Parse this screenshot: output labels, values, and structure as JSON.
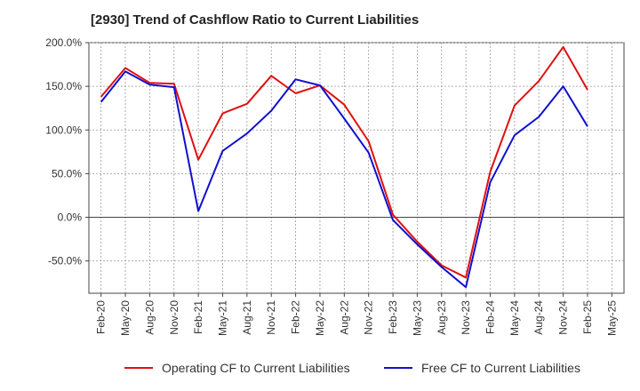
{
  "chart_data": {
    "type": "line",
    "title": "[2930]  Trend of Cashflow Ratio to Current Liabilities",
    "x_tick_labels": [
      "Feb-20",
      "May-20",
      "Aug-20",
      "Nov-20",
      "Feb-21",
      "May-21",
      "Aug-21",
      "Nov-21",
      "Feb-22",
      "May-22",
      "Aug-22",
      "Nov-22",
      "Feb-23",
      "May-23",
      "Aug-23",
      "Nov-23",
      "Feb-24",
      "May-24",
      "Aug-24",
      "Nov-24",
      "Feb-25",
      "May-25"
    ],
    "y_tick_labels": [
      "200.0%",
      "150.0%",
      "100.0%",
      "50.0%",
      "0.0%",
      "-50.0%"
    ],
    "y_ticks": [
      200,
      150,
      100,
      50,
      0,
      -50
    ],
    "ylim": [
      -87,
      200
    ],
    "x_count": 22,
    "grid": true,
    "legend_position": "bottom",
    "series": [
      {
        "name": "Operating CF to Current Liabilities",
        "color": "#e01010",
        "x": [
          0,
          1,
          2,
          3,
          4,
          5,
          6,
          7,
          8,
          9,
          10,
          11,
          12,
          13,
          14,
          15,
          16,
          17,
          18,
          19,
          20
        ],
        "values": [
          138,
          171,
          154,
          153,
          66,
          119,
          130,
          162,
          142,
          151,
          129,
          87,
          3,
          -28,
          -55,
          -69,
          52,
          128,
          156,
          195,
          146
        ]
      },
      {
        "name": "Free CF to Current Liabilities",
        "color": "#1010d0",
        "x": [
          0,
          1,
          2,
          3,
          4,
          5,
          6,
          7,
          8,
          9,
          10,
          11,
          12,
          13,
          14,
          15,
          16,
          17,
          18,
          19,
          20
        ],
        "values": [
          132,
          167,
          152,
          149,
          7,
          76,
          96,
          122,
          158,
          151,
          113,
          74,
          -3,
          -31,
          -57,
          -80,
          40,
          94,
          115,
          150,
          104
        ]
      }
    ]
  }
}
